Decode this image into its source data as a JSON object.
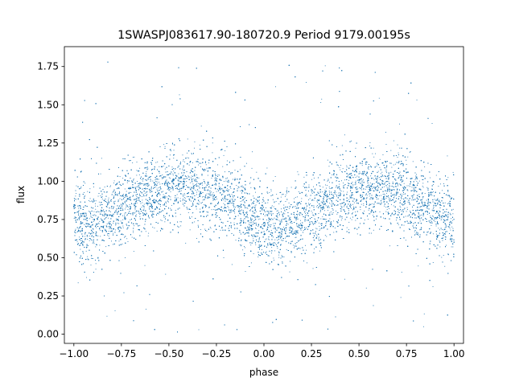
{
  "chart_data": {
    "type": "scatter",
    "title": "1SWASPJ083617.90-180720.9 Period 9179.00195s",
    "xlabel": "phase",
    "ylabel": "flux",
    "xlim": [
      -1.05,
      1.05
    ],
    "ylim": [
      -0.06,
      1.88
    ],
    "xticks": [
      -1.0,
      -0.75,
      -0.5,
      -0.25,
      0.0,
      0.25,
      0.5,
      0.75,
      1.0
    ],
    "xtick_labels": [
      "−1.00",
      "−0.75",
      "−0.50",
      "−0.25",
      "0.00",
      "0.25",
      "0.50",
      "0.75",
      "1.00"
    ],
    "yticks": [
      0.0,
      0.25,
      0.5,
      0.75,
      1.0,
      1.25,
      1.5,
      1.75
    ],
    "ytick_labels": [
      "0.00",
      "0.25",
      "0.50",
      "0.75",
      "1.00",
      "1.25",
      "1.50",
      "1.75"
    ],
    "grid": false,
    "color": "#1f77b4",
    "series": [
      {
        "points": [
          [
            -1.0,
            0.74
          ],
          [
            -0.95,
            0.71
          ],
          [
            -0.9,
            0.72
          ],
          [
            -0.85,
            0.76
          ],
          [
            -0.8,
            0.8
          ],
          [
            -0.75,
            0.84
          ],
          [
            -0.7,
            0.87
          ],
          [
            -0.65,
            0.89
          ],
          [
            -0.6,
            0.91
          ],
          [
            -0.55,
            0.93
          ],
          [
            -0.5,
            0.94
          ],
          [
            -0.45,
            0.95
          ],
          [
            -0.4,
            0.95
          ],
          [
            -0.35,
            0.94
          ],
          [
            -0.3,
            0.93
          ],
          [
            -0.25,
            0.91
          ],
          [
            -0.2,
            0.88
          ],
          [
            -0.15,
            0.85
          ],
          [
            -0.1,
            0.8
          ],
          [
            -0.05,
            0.75
          ],
          [
            0.0,
            0.71
          ],
          [
            0.05,
            0.68
          ],
          [
            0.1,
            0.69
          ],
          [
            0.15,
            0.72
          ],
          [
            0.2,
            0.76
          ],
          [
            0.25,
            0.8
          ],
          [
            0.3,
            0.84
          ],
          [
            0.35,
            0.87
          ],
          [
            0.4,
            0.9
          ],
          [
            0.45,
            0.92
          ],
          [
            0.5,
            0.94
          ],
          [
            0.55,
            0.95
          ],
          [
            0.6,
            0.95
          ],
          [
            0.65,
            0.94
          ],
          [
            0.7,
            0.93
          ],
          [
            0.75,
            0.91
          ],
          [
            0.8,
            0.88
          ],
          [
            0.85,
            0.84
          ],
          [
            0.9,
            0.8
          ],
          [
            0.95,
            0.75
          ],
          [
            1.0,
            0.72
          ]
        ]
      }
    ]
  }
}
